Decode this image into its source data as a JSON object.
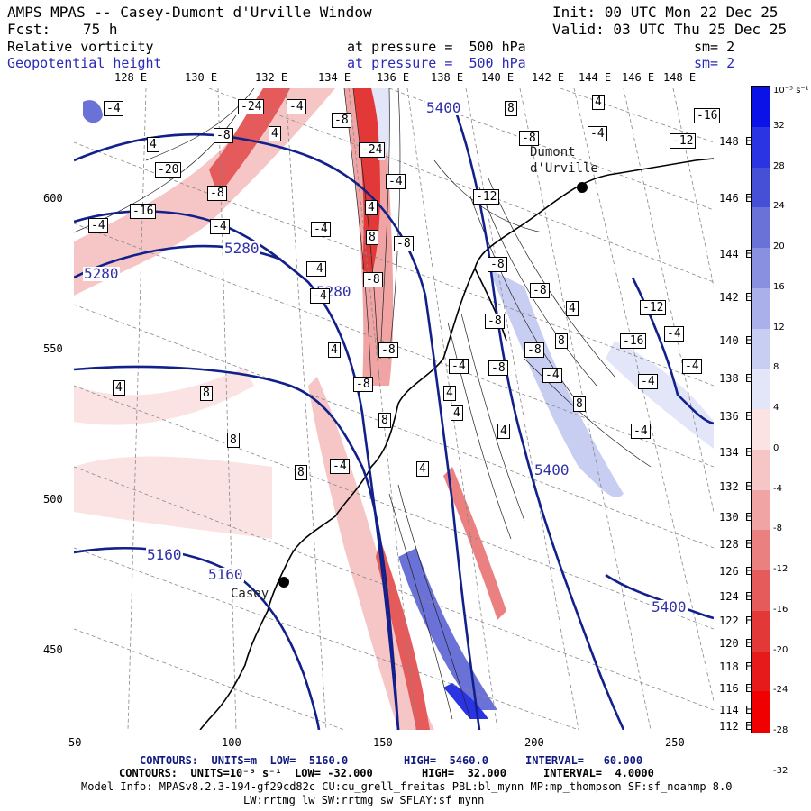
{
  "header": {
    "title": "AMPS MPAS -- Casey-Dumont d'Urville Window",
    "init": "Init: 00 UTC Mon 22 Dec 25",
    "fcst_label": "Fcst:",
    "fcst_value": "75 h",
    "valid": "Valid: 03 UTC Thu 25 Dec 25",
    "field1_name": "Relative vorticity",
    "field1_level": "at pressure =  500 hPa",
    "field1_sm": "sm= 2",
    "field2_name": "Geopotential height",
    "field2_level": "at pressure =  500 hPa",
    "field2_sm": "sm= 2"
  },
  "top_longitudes": [
    "128 E",
    "130 E",
    "132 E",
    "134 E",
    "136 E",
    "138 E",
    "140 E",
    "142 E",
    "144 E",
    "146 E",
    "148 E"
  ],
  "right_longitudes": [
    "148 E",
    "146 E",
    "144 E",
    "142 E",
    "140 E",
    "138 E",
    "136 E",
    "134 E",
    "132 E",
    "130 E",
    "128 E",
    "126 E",
    "124 E",
    "122 E",
    "120 E",
    "118 E",
    "116 E",
    "114 E",
    "112 E"
  ],
  "left_ticks": [
    "600",
    "550",
    "500",
    "450"
  ],
  "bottom_ticks": [
    "50",
    "100",
    "150",
    "200",
    "250"
  ],
  "places": {
    "dumont": "Dumont d'Urville",
    "casey": "Casey"
  },
  "height_labels": [
    "5400",
    "5280",
    "5280",
    "5280",
    "5400",
    "5160",
    "5160",
    "5400"
  ],
  "colorbar": {
    "unit": "10⁻⁵ s⁻¹",
    "labels": [
      "32",
      "28",
      "24",
      "20",
      "16",
      "12",
      "8",
      "4",
      "0",
      "-4",
      "-8",
      "-12",
      "-16",
      "-20",
      "-24",
      "-28",
      "-32"
    ],
    "colors_positive": [
      "#0a12e8",
      "#2a34e2",
      "#4650d6",
      "#6a72d8",
      "#8a90e0",
      "#aab0ea",
      "#c8cdf2",
      "#e3e6f8"
    ],
    "colors_negative": [
      "#fbe3e3",
      "#f6c6c6",
      "#f0a4a4",
      "#ea8080",
      "#e55a5a",
      "#e23838",
      "#e61a1a",
      "#f00000"
    ]
  },
  "footer": {
    "line1_a": "CONTOURS:  UNITS=m  LOW=  5160.0",
    "line1_b": "HIGH=  5460.0",
    "line1_c": "INTERVAL=   60.000",
    "line2_a": "CONTOURS:  UNITS=10⁻⁵ s⁻¹  LOW= -32.000",
    "line2_b": "HIGH=  32.000",
    "line2_c": "INTERVAL=  4.0000",
    "line3": "Model Info: MPASv8.2.3-194-gf29cd82c CU:cu_grell_freitas PBL:bl_mynn MP:mp_thompson SF:sf_noahmp 8.0",
    "line4": "LW:rrtmg_lw SW:rrtmg_sw SFLAY:sf_mynn"
  },
  "vort_labels": [
    "-4",
    "-24",
    "-4",
    "-8",
    "8",
    "4",
    "-16",
    "-8",
    "4",
    "-24",
    "-4",
    "-12",
    "4",
    "-8",
    "-20",
    "-4",
    "-8",
    "-16",
    "4",
    "-12",
    "-4",
    "-4",
    "8",
    "-4",
    "-8",
    "-4",
    "-8",
    "-4",
    "-8",
    "-8",
    "4",
    "-12",
    "-8",
    "8",
    "4",
    "-8",
    "-8",
    "-16",
    "-4",
    "-8",
    "-4",
    "-8",
    "-4",
    "-4",
    "-4",
    "4",
    "8",
    "4",
    "8",
    "4",
    "4",
    "8",
    "8",
    "-4",
    "8",
    "-4",
    "4"
  ]
}
